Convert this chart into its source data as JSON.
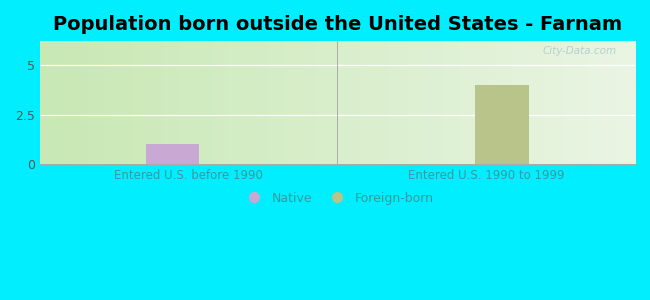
{
  "title": "Population born outside the United States - Farnam",
  "groups": [
    "Entered U.S. before 1990",
    "Entered U.S. 1990 to 1999"
  ],
  "native_values": [
    1,
    0
  ],
  "foreign_values": [
    0,
    4
  ],
  "native_color": "#c9a8d4",
  "foreign_color": "#b8c48a",
  "ylim": [
    0,
    6.2
  ],
  "yticks": [
    0,
    2.5,
    5
  ],
  "background_outer": "#00eeff",
  "bar_width": 0.18,
  "title_fontsize": 14,
  "label_fontsize": 8.5,
  "tick_fontsize": 9,
  "watermark": "City-Data.com",
  "bg_color_left": "#c8e8b4",
  "bg_color_right": "#eaf5e4"
}
